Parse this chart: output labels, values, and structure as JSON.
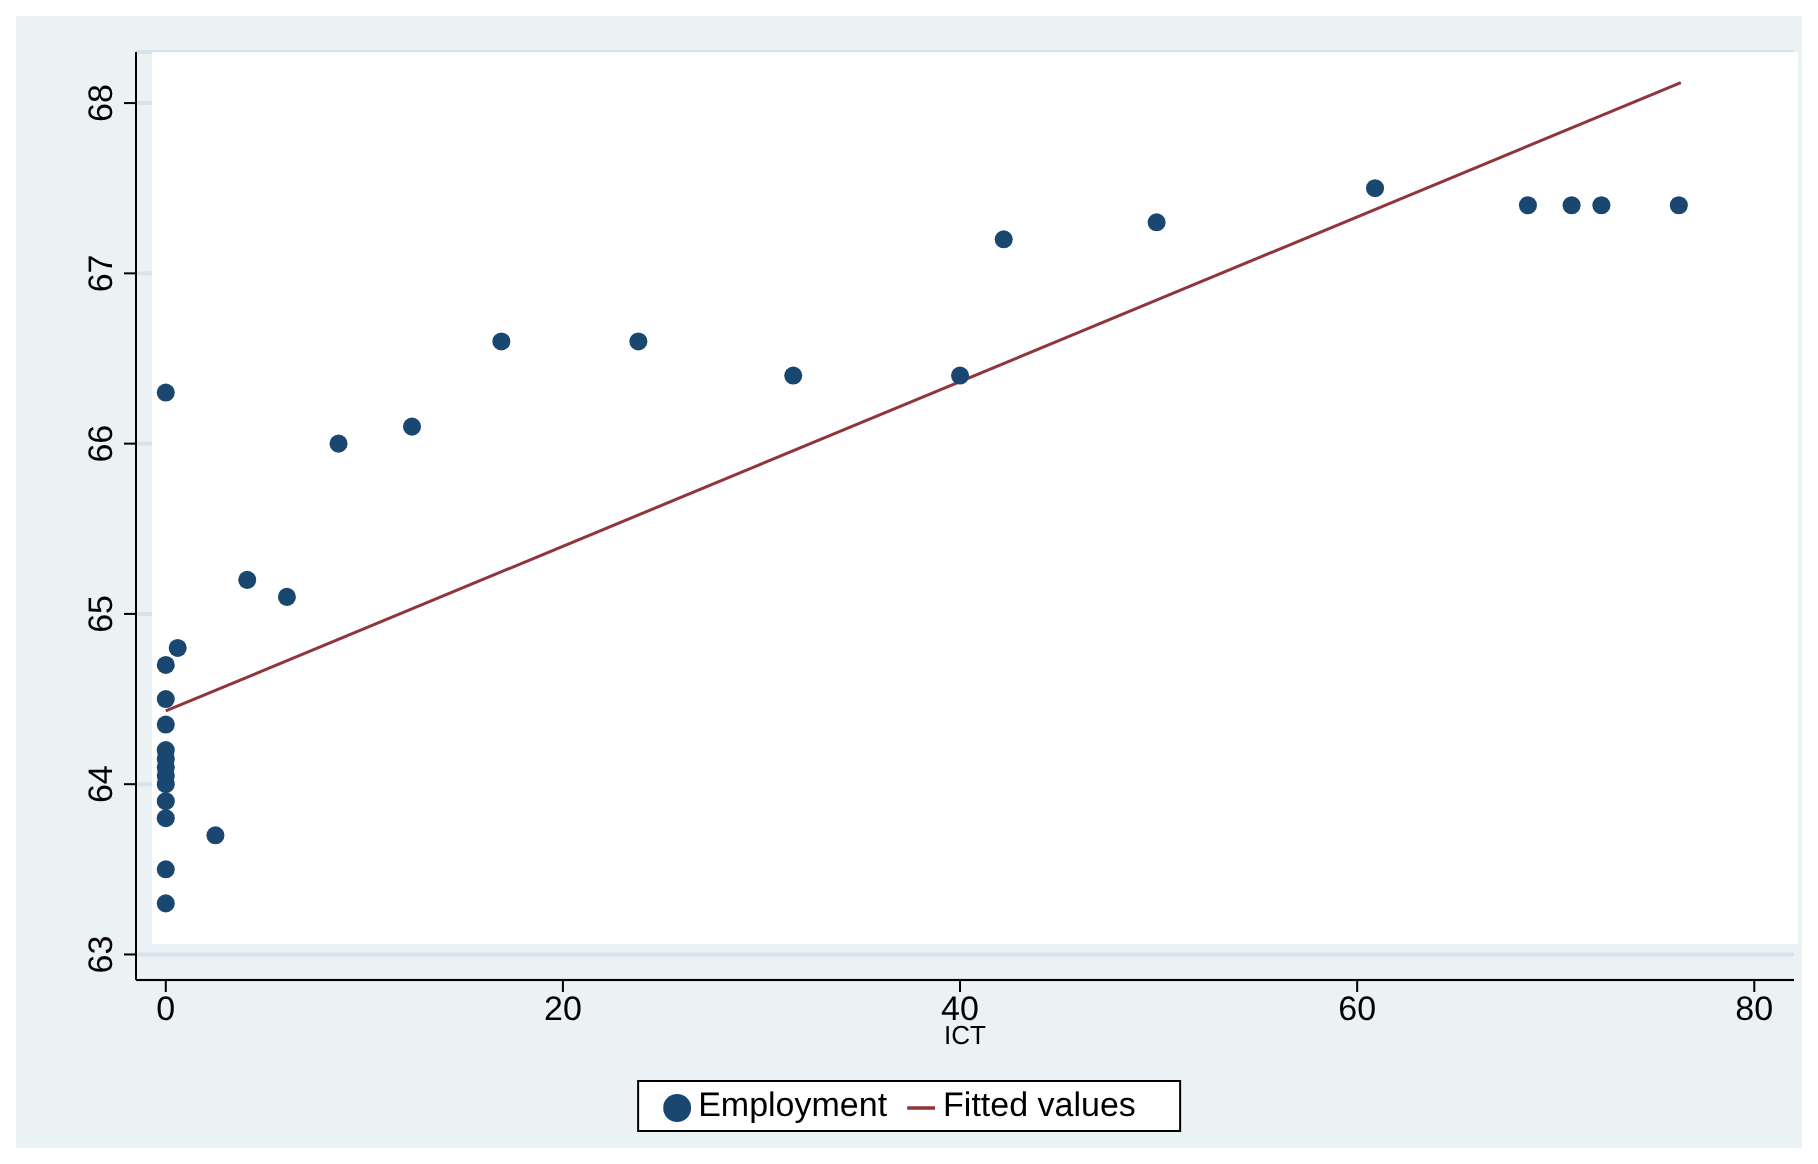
{
  "chart_data": {
    "type": "scatter",
    "xlabel": "ICT",
    "xlim": [
      -1.5,
      82
    ],
    "xticks": [
      0,
      20,
      40,
      60,
      80
    ],
    "ylim": [
      62.85,
      68.3
    ],
    "yticks": [
      63,
      64,
      65,
      66,
      67,
      68
    ],
    "grid": "y",
    "legend": "bottom",
    "series": [
      {
        "name": "Employment",
        "marker": "circle",
        "color": "#1a476f",
        "x": [
          0,
          0,
          0.6,
          0,
          0,
          0,
          0,
          0,
          0,
          0,
          0,
          0,
          0,
          0,
          2.5,
          4.1,
          6.1,
          8.7,
          12.4,
          16.9,
          23.8,
          31.6,
          40.0,
          42.2,
          49.9,
          60.9,
          68.6,
          70.8,
          72.3,
          76.2
        ],
        "values": [
          66.3,
          64.7,
          64.8,
          64.5,
          64.35,
          64.2,
          64.15,
          64.1,
          64.05,
          64.0,
          63.9,
          63.8,
          63.5,
          63.3,
          63.7,
          65.2,
          65.1,
          66.0,
          66.1,
          66.6,
          66.6,
          66.4,
          66.4,
          67.2,
          67.3,
          67.5,
          67.4,
          67.4,
          67.4,
          67.4
        ]
      },
      {
        "name": "Fitted values",
        "type": "line",
        "marker": "none",
        "color": "#90353b",
        "x": [
          0,
          76.3
        ],
        "values": [
          64.43,
          68.12
        ]
      }
    ]
  }
}
